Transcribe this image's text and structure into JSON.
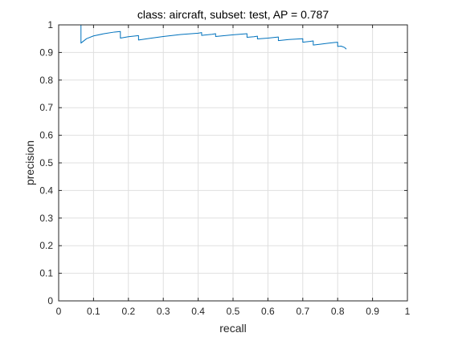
{
  "chart_data": {
    "type": "line",
    "title": "class: aircraft, subset: test, AP = 0.787",
    "xlabel": "recall",
    "ylabel": "precision",
    "xlim": [
      0,
      1
    ],
    "ylim": [
      0,
      1
    ],
    "grid": true,
    "xticks": [
      0,
      0.1,
      0.2,
      0.3,
      0.4,
      0.5,
      0.6,
      0.7,
      0.8,
      0.9,
      1
    ],
    "yticks": [
      0,
      0.1,
      0.2,
      0.3,
      0.4,
      0.5,
      0.6,
      0.7,
      0.8,
      0.9,
      1
    ],
    "xtick_labels": [
      "0",
      "0.1",
      "0.2",
      "0.3",
      "0.4",
      "0.5",
      "0.6",
      "0.7",
      "0.8",
      "0.9",
      "1"
    ],
    "ytick_labels": [
      "0",
      "0.1",
      "0.2",
      "0.3",
      "0.4",
      "0.5",
      "0.6",
      "0.7",
      "0.8",
      "0.9",
      "1"
    ],
    "series": [
      {
        "color": "#0072BD",
        "x": [
          0.0,
          0.064,
          0.064,
          0.08,
          0.1,
          0.13,
          0.16,
          0.177,
          0.177,
          0.2,
          0.229,
          0.229,
          0.26,
          0.3,
          0.35,
          0.4,
          0.41,
          0.41,
          0.44,
          0.45,
          0.45,
          0.5,
          0.54,
          0.54,
          0.56,
          0.57,
          0.57,
          0.6,
          0.63,
          0.63,
          0.66,
          0.7,
          0.7,
          0.72,
          0.73,
          0.73,
          0.75,
          0.77,
          0.79,
          0.8,
          0.8,
          0.81,
          0.82,
          0.825
        ],
        "y": [
          1.0,
          1.0,
          0.934,
          0.95,
          0.96,
          0.968,
          0.974,
          0.976,
          0.952,
          0.957,
          0.961,
          0.945,
          0.951,
          0.958,
          0.965,
          0.97,
          0.972,
          0.962,
          0.966,
          0.968,
          0.958,
          0.964,
          0.968,
          0.955,
          0.957,
          0.959,
          0.949,
          0.952,
          0.956,
          0.943,
          0.947,
          0.95,
          0.937,
          0.94,
          0.942,
          0.927,
          0.93,
          0.933,
          0.936,
          0.937,
          0.922,
          0.923,
          0.918,
          0.912
        ]
      }
    ]
  }
}
